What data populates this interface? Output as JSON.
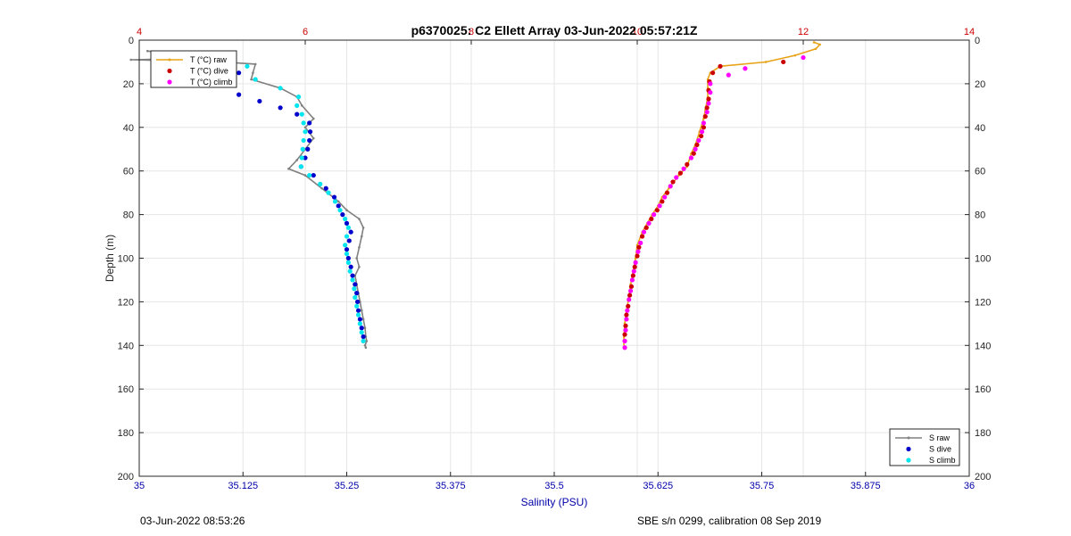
{
  "chart_data": {
    "type": "line",
    "title": "p6370025: C2 Ellett Array 03-Jun-2022 05:57:21Z",
    "ylabel": "Depth (m)",
    "xlabel_bottom": "Salinity (PSU)",
    "xlabel_top": "",
    "x_bottom_lim": [
      35,
      36
    ],
    "x_bottom_ticks": [
      "35",
      "35.125",
      "35.25",
      "35.375",
      "35.5",
      "35.625",
      "35.75",
      "35.875",
      "36"
    ],
    "x_top_lim": [
      4,
      14
    ],
    "x_top_ticks": [
      "4",
      "6",
      "8",
      "10",
      "12",
      "14"
    ],
    "y_lim": [
      0,
      200
    ],
    "y_reversed": true,
    "y_ticks": [
      "0",
      "20",
      "40",
      "60",
      "80",
      "100",
      "120",
      "140",
      "160",
      "180",
      "200"
    ],
    "grid": true,
    "colors": {
      "temp_raw": "#e8a317",
      "temp_dive": "#cc0000",
      "temp_climb": "#ff00ff",
      "sal_raw": "#808080",
      "sal_dive": "#0000cc",
      "sal_climb": "#00e5ee",
      "top_axis": "#cc0000",
      "bottom_axis": "#0000aa"
    },
    "legend_temperature": {
      "position": "top-left",
      "entries": [
        "T (°C) raw",
        "T (°C) dive",
        "T (°C) climb"
      ]
    },
    "legend_salinity": {
      "position": "bottom-right",
      "entries": [
        "S raw",
        "S dive",
        "S climb"
      ]
    },
    "series": [
      {
        "name": "T (°C) raw",
        "axis": "top",
        "style": "line",
        "points": [
          [
            12.13,
            1
          ],
          [
            12.2,
            2
          ],
          [
            12.15,
            4
          ],
          [
            11.9,
            7
          ],
          [
            11.55,
            10
          ],
          [
            11.0,
            12
          ],
          [
            10.88,
            15
          ],
          [
            10.85,
            18
          ],
          [
            10.85,
            22
          ],
          [
            10.85,
            26
          ],
          [
            10.82,
            32
          ],
          [
            10.8,
            36
          ],
          [
            10.75,
            42
          ],
          [
            10.7,
            48
          ],
          [
            10.65,
            52
          ],
          [
            10.6,
            58
          ],
          [
            10.5,
            62
          ],
          [
            10.38,
            68
          ],
          [
            10.3,
            72
          ],
          [
            10.25,
            76
          ],
          [
            10.18,
            80
          ],
          [
            10.12,
            84
          ],
          [
            10.06,
            88
          ],
          [
            10.0,
            94
          ],
          [
            9.98,
            100
          ],
          [
            9.95,
            106
          ],
          [
            9.92,
            112
          ],
          [
            9.9,
            118
          ],
          [
            9.87,
            124
          ],
          [
            9.85,
            130
          ],
          [
            9.84,
            136
          ],
          [
            9.84,
            141
          ]
        ]
      },
      {
        "name": "T (°C) dive",
        "axis": "top",
        "style": "markers",
        "points": [
          [
            11.76,
            10
          ],
          [
            11.0,
            12
          ],
          [
            10.91,
            15
          ],
          [
            10.87,
            19
          ],
          [
            10.86,
            23
          ],
          [
            10.86,
            27
          ],
          [
            10.84,
            31
          ],
          [
            10.82,
            35
          ],
          [
            10.8,
            40
          ],
          [
            10.77,
            44
          ],
          [
            10.72,
            48
          ],
          [
            10.68,
            52
          ],
          [
            10.6,
            57
          ],
          [
            10.52,
            61
          ],
          [
            10.43,
            65
          ],
          [
            10.36,
            70
          ],
          [
            10.3,
            74
          ],
          [
            10.24,
            78
          ],
          [
            10.17,
            82
          ],
          [
            10.11,
            86
          ],
          [
            10.06,
            90
          ],
          [
            10.02,
            95
          ],
          [
            10.0,
            99
          ],
          [
            9.97,
            104
          ],
          [
            9.95,
            108
          ],
          [
            9.93,
            113
          ],
          [
            9.91,
            117
          ],
          [
            9.89,
            122
          ],
          [
            9.87,
            126
          ],
          [
            9.86,
            131
          ],
          [
            9.85,
            135
          ]
        ]
      },
      {
        "name": "T (°C) climb",
        "axis": "top",
        "style": "markers",
        "points": [
          [
            12.0,
            8
          ],
          [
            11.3,
            13
          ],
          [
            11.1,
            16
          ],
          [
            10.88,
            20
          ],
          [
            10.88,
            24
          ],
          [
            10.86,
            29
          ],
          [
            10.84,
            33
          ],
          [
            10.8,
            38
          ],
          [
            10.78,
            42
          ],
          [
            10.74,
            46
          ],
          [
            10.7,
            50
          ],
          [
            10.65,
            54
          ],
          [
            10.56,
            59
          ],
          [
            10.47,
            63
          ],
          [
            10.4,
            67
          ],
          [
            10.33,
            72
          ],
          [
            10.27,
            76
          ],
          [
            10.2,
            80
          ],
          [
            10.14,
            84
          ],
          [
            10.08,
            88
          ],
          [
            10.04,
            93
          ],
          [
            10.01,
            97
          ],
          [
            9.98,
            102
          ],
          [
            9.96,
            106
          ],
          [
            9.94,
            110
          ],
          [
            9.92,
            115
          ],
          [
            9.9,
            119
          ],
          [
            9.88,
            124
          ],
          [
            9.87,
            128
          ],
          [
            9.86,
            133
          ],
          [
            9.85,
            138
          ],
          [
            9.85,
            141
          ]
        ]
      },
      {
        "name": "S raw",
        "axis": "bottom",
        "style": "line",
        "points": [
          [
            35.01,
            5
          ],
          [
            35.05,
            7
          ],
          [
            35.11,
            8
          ],
          [
            34.99,
            9
          ],
          [
            35.1,
            10
          ],
          [
            35.14,
            11
          ],
          [
            35.137,
            15
          ],
          [
            35.135,
            18
          ],
          [
            35.17,
            22
          ],
          [
            35.19,
            26
          ],
          [
            35.196,
            30
          ],
          [
            35.21,
            36
          ],
          [
            35.2,
            40
          ],
          [
            35.21,
            45
          ],
          [
            35.2,
            50
          ],
          [
            35.19,
            55
          ],
          [
            35.18,
            59
          ],
          [
            35.2,
            62
          ],
          [
            35.22,
            68
          ],
          [
            35.24,
            74
          ],
          [
            35.25,
            78
          ],
          [
            35.265,
            82
          ],
          [
            35.27,
            86
          ],
          [
            35.268,
            90
          ],
          [
            35.265,
            95
          ],
          [
            35.262,
            100
          ],
          [
            35.265,
            104
          ],
          [
            35.26,
            108
          ],
          [
            35.262,
            112
          ],
          [
            35.264,
            116
          ],
          [
            35.266,
            120
          ],
          [
            35.268,
            124
          ],
          [
            35.27,
            128
          ],
          [
            35.272,
            132
          ],
          [
            35.273,
            136
          ],
          [
            35.274,
            138
          ],
          [
            35.272,
            140
          ],
          [
            35.273,
            141
          ]
        ]
      },
      {
        "name": "S dive",
        "axis": "bottom",
        "style": "markers",
        "points": [
          [
            35.1,
            10
          ],
          [
            35.12,
            15
          ],
          [
            35.115,
            20
          ],
          [
            35.12,
            25
          ],
          [
            35.145,
            28
          ],
          [
            35.17,
            31
          ],
          [
            35.19,
            34
          ],
          [
            35.205,
            38
          ],
          [
            35.206,
            42
          ],
          [
            35.205,
            46
          ],
          [
            35.203,
            50
          ],
          [
            35.2,
            54
          ],
          [
            35.195,
            58
          ],
          [
            35.21,
            62
          ],
          [
            35.225,
            68
          ],
          [
            35.235,
            72
          ],
          [
            35.24,
            76
          ],
          [
            35.245,
            80
          ],
          [
            35.25,
            84
          ],
          [
            35.255,
            88
          ],
          [
            35.253,
            92
          ],
          [
            35.25,
            96
          ],
          [
            35.252,
            100
          ],
          [
            35.255,
            104
          ],
          [
            35.257,
            108
          ],
          [
            35.26,
            112
          ],
          [
            35.262,
            116
          ],
          [
            35.263,
            120
          ],
          [
            35.264,
            124
          ],
          [
            35.266,
            128
          ],
          [
            35.268,
            132
          ],
          [
            35.27,
            136
          ]
        ]
      },
      {
        "name": "S climb",
        "axis": "bottom",
        "style": "markers",
        "points": [
          [
            35.13,
            12
          ],
          [
            35.115,
            16
          ],
          [
            35.14,
            18
          ],
          [
            35.17,
            22
          ],
          [
            35.192,
            26
          ],
          [
            35.19,
            30
          ],
          [
            35.196,
            34
          ],
          [
            35.198,
            38
          ],
          [
            35.2,
            42
          ],
          [
            35.198,
            46
          ],
          [
            35.197,
            50
          ],
          [
            35.196,
            54
          ],
          [
            35.195,
            58
          ],
          [
            35.205,
            62
          ],
          [
            35.218,
            66
          ],
          [
            35.228,
            70
          ],
          [
            35.236,
            74
          ],
          [
            35.242,
            78
          ],
          [
            35.248,
            82
          ],
          [
            35.252,
            86
          ],
          [
            35.25,
            90
          ],
          [
            35.248,
            94
          ],
          [
            35.25,
            98
          ],
          [
            35.252,
            102
          ],
          [
            35.254,
            106
          ],
          [
            35.257,
            110
          ],
          [
            35.259,
            114
          ],
          [
            35.26,
            118
          ],
          [
            35.262,
            122
          ],
          [
            35.264,
            126
          ],
          [
            35.266,
            130
          ],
          [
            35.268,
            134
          ],
          [
            35.27,
            138
          ]
        ]
      }
    ]
  },
  "footer": {
    "left": "03-Jun-2022 08:53:26",
    "right": "SBE s/n 0299, calibration 08 Sep 2019"
  }
}
